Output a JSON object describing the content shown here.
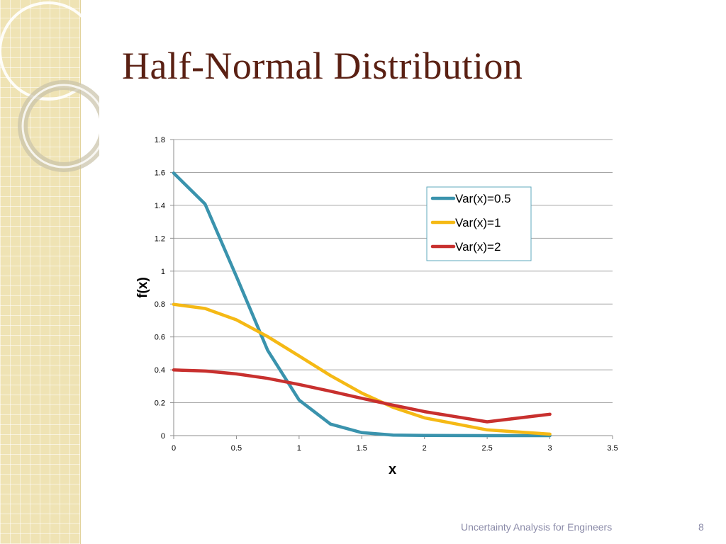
{
  "slide": {
    "title": "Half-Normal Distribution",
    "footer": "Uncertainty Analysis for Engineers",
    "page_number": "8"
  },
  "colors": {
    "title": "#5a2013",
    "band": "#efe3b4",
    "footer": "#8a8aa8"
  },
  "chart_data": {
    "type": "line",
    "title": "",
    "xlabel": "x",
    "ylabel": "f(x)",
    "xlim": [
      0,
      3.5
    ],
    "ylim": [
      0,
      1.8
    ],
    "xticks": [
      "0",
      "0.5",
      "1",
      "1.5",
      "2",
      "2.5",
      "3",
      "3.5"
    ],
    "yticks": [
      "0",
      "0.2",
      "0.4",
      "0.6",
      "0.8",
      "1",
      "1.2",
      "1.4",
      "1.6",
      "1.8"
    ],
    "grid": true,
    "legend_position": "top-right",
    "series": [
      {
        "name": "Var(x)=0.5",
        "color": "#3a93ad",
        "x": [
          0,
          0.25,
          0.5,
          0.75,
          1,
          1.25,
          1.5,
          1.75,
          2,
          2.5,
          3
        ],
        "y": [
          1.596,
          1.408,
          0.968,
          0.518,
          0.216,
          0.07,
          0.018,
          0.003,
          0.001,
          0.0,
          0.0
        ]
      },
      {
        "name": "Var(x)=1",
        "color": "#f5b915",
        "x": [
          0,
          0.25,
          0.5,
          0.75,
          1,
          1.25,
          1.5,
          1.75,
          2,
          2.5,
          3
        ],
        "y": [
          0.798,
          0.773,
          0.704,
          0.602,
          0.484,
          0.365,
          0.259,
          0.172,
          0.108,
          0.035,
          0.009
        ]
      },
      {
        "name": "Var(x)=2",
        "color": "#c8302e",
        "x": [
          0,
          0.25,
          0.5,
          0.75,
          1,
          1.25,
          1.5,
          1.75,
          2,
          2.5,
          3
        ],
        "y": [
          0.399,
          0.393,
          0.375,
          0.348,
          0.311,
          0.27,
          0.227,
          0.185,
          0.146,
          0.084,
          0.13
        ]
      }
    ]
  }
}
